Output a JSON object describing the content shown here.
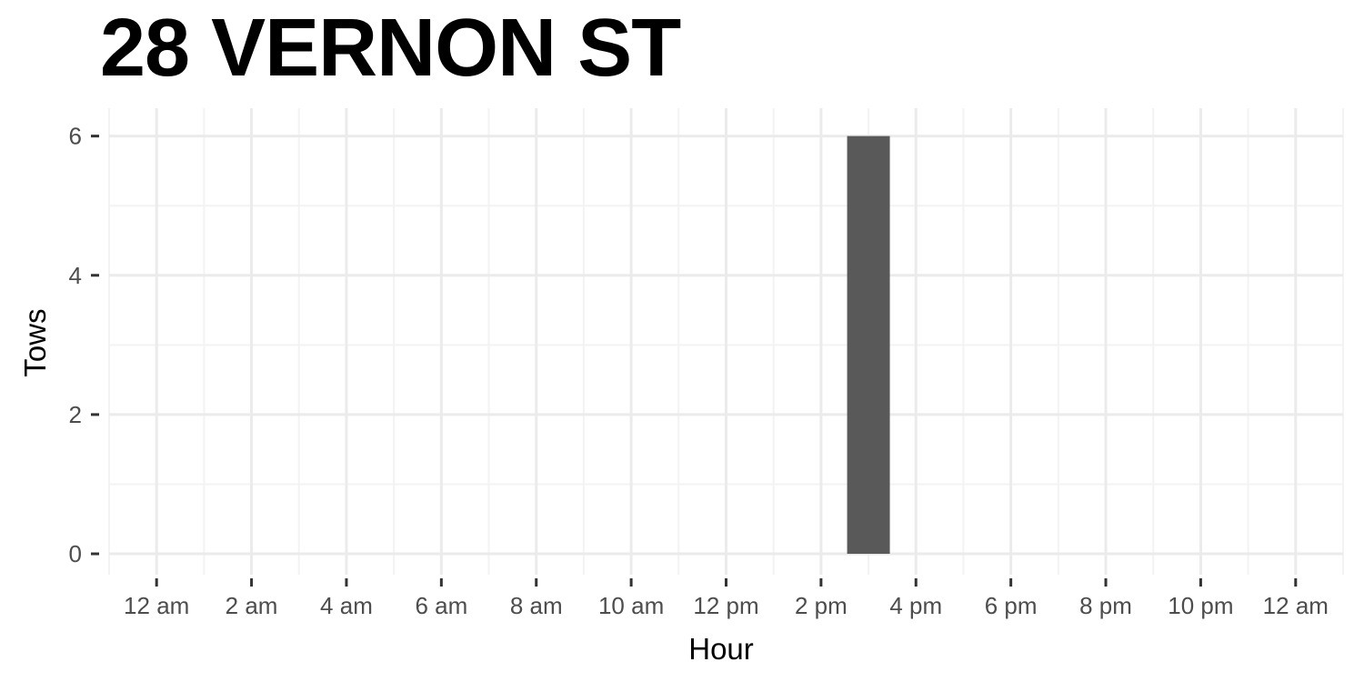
{
  "chart_data": {
    "type": "bar",
    "title": "28 VERNON ST",
    "xlabel": "Hour",
    "ylabel": "Tows",
    "x_ticks": [
      {
        "value": 0,
        "label": "12 am"
      },
      {
        "value": 2,
        "label": "2 am"
      },
      {
        "value": 4,
        "label": "4 am"
      },
      {
        "value": 6,
        "label": "6 am"
      },
      {
        "value": 8,
        "label": "8 am"
      },
      {
        "value": 10,
        "label": "10 am"
      },
      {
        "value": 12,
        "label": "12 pm"
      },
      {
        "value": 14,
        "label": "2 pm"
      },
      {
        "value": 16,
        "label": "4 pm"
      },
      {
        "value": 18,
        "label": "6 pm"
      },
      {
        "value": 20,
        "label": "8 pm"
      },
      {
        "value": 22,
        "label": "10 pm"
      },
      {
        "value": 24,
        "label": "12 am"
      }
    ],
    "xlim": [
      -1,
      25
    ],
    "ylim": [
      -0.3,
      6.4
    ],
    "y_ticks": [
      0,
      2,
      4,
      6
    ],
    "bars": [
      {
        "x": 15,
        "value": 6
      }
    ],
    "bar_width_hours": 0.9,
    "grid": true,
    "colors": {
      "bar": "#595959",
      "grid_major": "#ebebeb",
      "grid_minor": "#f3f3f3",
      "tick": "#333333"
    }
  }
}
